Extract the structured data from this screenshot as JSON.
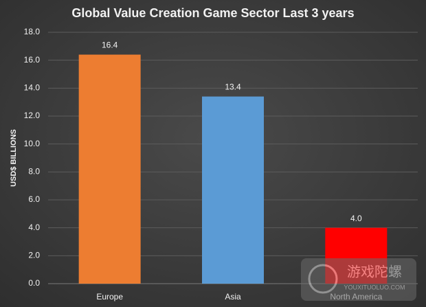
{
  "chart_data": {
    "type": "bar",
    "title": "Global Value Creation Game Sector Last 3 years",
    "y_label": "USD$ BILLIONS",
    "categories": [
      "Europe",
      "Asia",
      "North America"
    ],
    "values": [
      16.4,
      13.4,
      4.0
    ],
    "value_labels": [
      "16.4",
      "13.4",
      "4.0"
    ],
    "colors": [
      "#ed7d31",
      "#5b9bd5",
      "#ff0000"
    ],
    "ylim": [
      0,
      18
    ],
    "yticks": [
      {
        "value": 0,
        "label": "0.0"
      },
      {
        "value": 2,
        "label": "2.0"
      },
      {
        "value": 4,
        "label": "4.0"
      },
      {
        "value": 6,
        "label": "6.0"
      },
      {
        "value": 8,
        "label": "8.0"
      },
      {
        "value": 10,
        "label": "10.0"
      },
      {
        "value": 12,
        "label": "12.0"
      },
      {
        "value": 14,
        "label": "14.0"
      },
      {
        "value": 16,
        "label": "16.0"
      },
      {
        "value": 18,
        "label": "18.0"
      }
    ],
    "grid": true
  },
  "watermark": {
    "name": "游戏陀螺",
    "url": "YOUXITUOLUO.COM"
  }
}
